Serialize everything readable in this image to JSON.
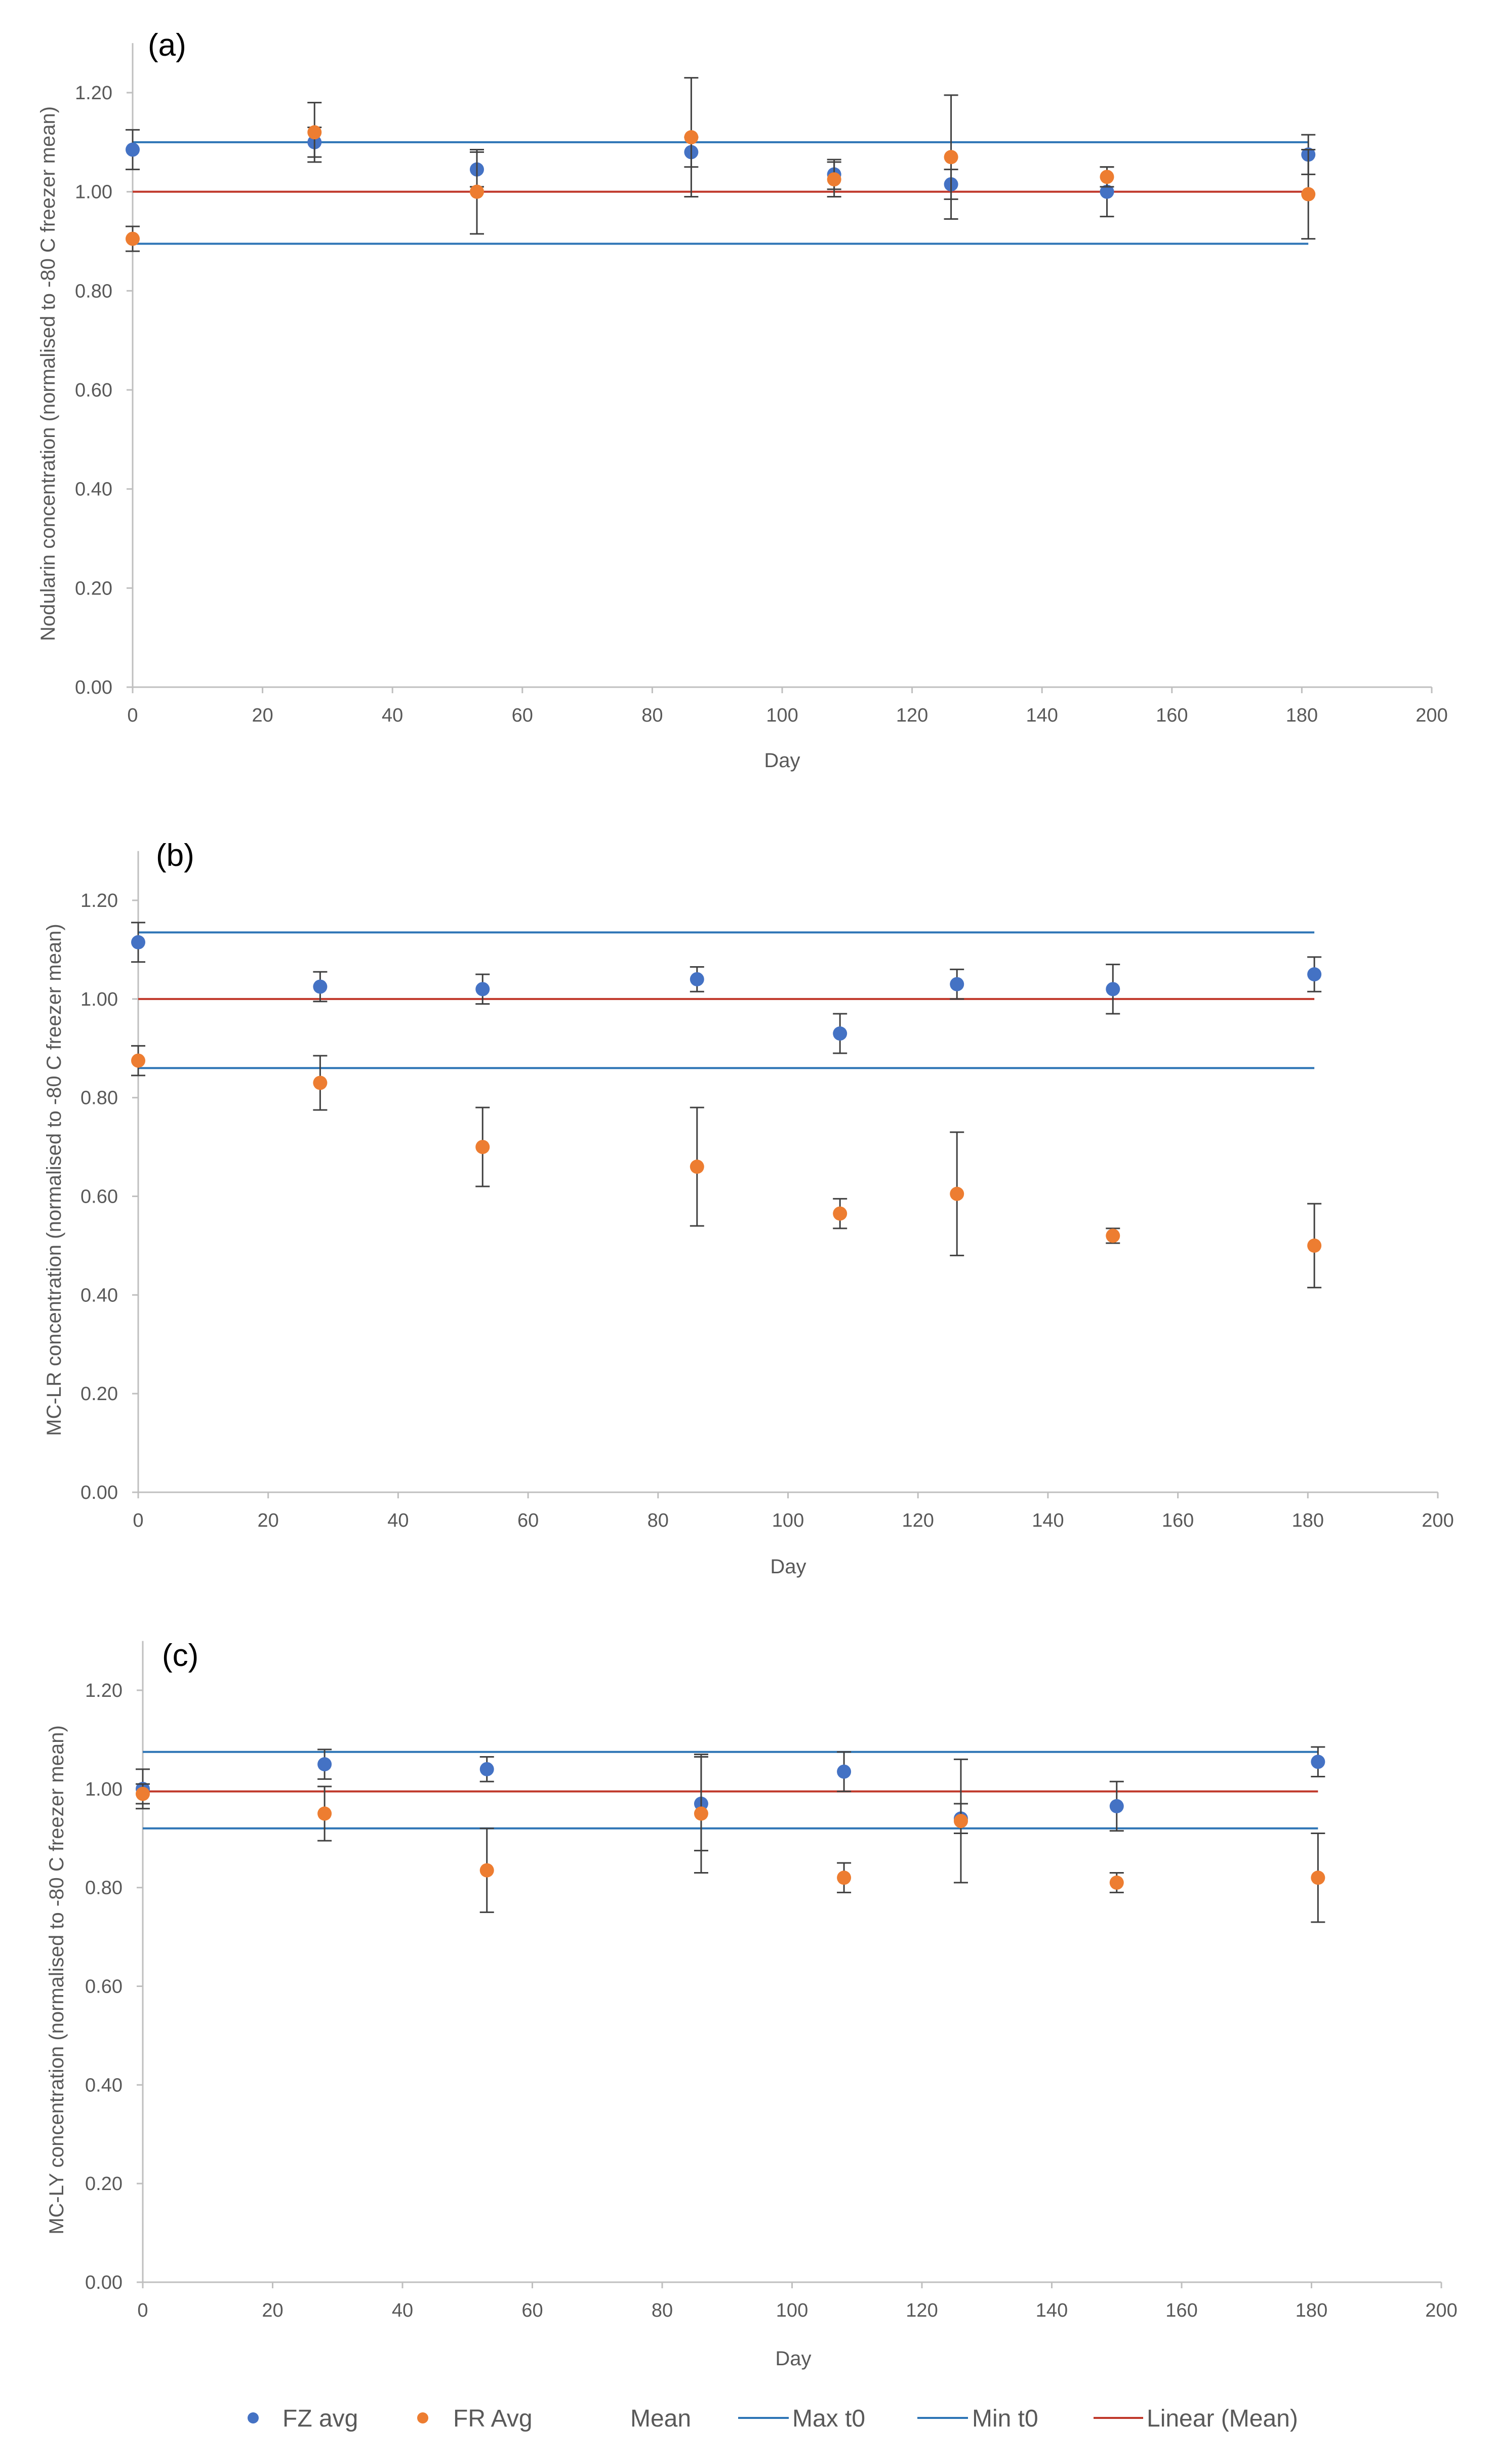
{
  "figure": {
    "background": "#ffffff"
  },
  "colors": {
    "fz": "#4472C4",
    "fr": "#ED7D31",
    "bound": "#2E75B6",
    "mean_line": "#C0392B",
    "axis": "#BFBFBF",
    "error_bar": "#404040"
  },
  "legend": {
    "items": [
      {
        "label": "FZ avg",
        "kind": "marker",
        "color": "#4472C4"
      },
      {
        "label": "FR Avg",
        "kind": "marker",
        "color": "#ED7D31"
      },
      {
        "label": "Mean",
        "kind": "none"
      },
      {
        "label": "Max t0",
        "kind": "line",
        "color": "#2E75B6"
      },
      {
        "label": "Min t0",
        "kind": "line",
        "color": "#2E75B6"
      },
      {
        "label": "Linear (Mean)",
        "kind": "line",
        "color": "#C0392B"
      }
    ]
  },
  "chart_data": [
    {
      "type": "scatter",
      "panel_label": "(a)",
      "xlabel": "Day",
      "ylabel": "Nodularin concentration (normalised to -80 C freezer mean)",
      "xlim": [
        0,
        200
      ],
      "ylim": [
        0,
        1.3
      ],
      "xticks": [
        "0",
        "20",
        "40",
        "60",
        "80",
        "100",
        "120",
        "140",
        "160",
        "180",
        "200"
      ],
      "yticks": [
        "0.00",
        "0.20",
        "0.40",
        "0.60",
        "0.80",
        "1.00",
        "1.20"
      ],
      "reference_lines": {
        "max_t0": 1.1,
        "min_t0": 0.895,
        "mean": 1.0,
        "x_range": [
          0,
          181
        ]
      },
      "series": [
        {
          "name": "FZ avg",
          "x": [
            0,
            28,
            53,
            86,
            108,
            126,
            150,
            181
          ],
          "y": [
            1.085,
            1.1,
            1.045,
            1.08,
            1.035,
            1.015,
            1.0,
            1.075
          ],
          "error": [
            0.04,
            0.03,
            0.035,
            0.03,
            0.03,
            0.03,
            0.05,
            0.04
          ]
        },
        {
          "name": "FR Avg",
          "x": [
            0,
            28,
            53,
            86,
            108,
            126,
            150,
            181
          ],
          "y": [
            0.905,
            1.12,
            1.0,
            1.11,
            1.025,
            1.07,
            1.03,
            0.995
          ],
          "error": [
            0.025,
            0.06,
            0.085,
            0.12,
            0.035,
            0.125,
            0.02,
            0.09
          ]
        }
      ]
    },
    {
      "type": "scatter",
      "panel_label": "(b)",
      "xlabel": "Day",
      "ylabel": "MC-LR concentration (normalised to -80 C freezer mean)",
      "xlim": [
        0,
        200
      ],
      "ylim": [
        0,
        1.3
      ],
      "xticks": [
        "0",
        "20",
        "40",
        "60",
        "80",
        "100",
        "120",
        "140",
        "160",
        "180",
        "200"
      ],
      "yticks": [
        "0.00",
        "0.20",
        "0.40",
        "0.60",
        "0.80",
        "1.00",
        "1.20"
      ],
      "reference_lines": {
        "max_t0": 1.135,
        "min_t0": 0.86,
        "mean": 1.0,
        "x_range": [
          0,
          181
        ]
      },
      "series": [
        {
          "name": "FZ avg",
          "x": [
            0,
            28,
            53,
            86,
            108,
            126,
            150,
            181
          ],
          "y": [
            1.115,
            1.025,
            1.02,
            1.04,
            0.93,
            1.03,
            1.02,
            1.05
          ],
          "error": [
            0.04,
            0.03,
            0.03,
            0.025,
            0.04,
            0.03,
            0.05,
            0.035
          ]
        },
        {
          "name": "FR Avg",
          "x": [
            0,
            28,
            53,
            86,
            108,
            126,
            150,
            181
          ],
          "y": [
            0.875,
            0.83,
            0.7,
            0.66,
            0.565,
            0.605,
            0.52,
            0.5
          ],
          "error": [
            0.03,
            0.055,
            0.08,
            0.12,
            0.03,
            0.125,
            0.015,
            0.085
          ]
        }
      ]
    },
    {
      "type": "scatter",
      "panel_label": "(c)",
      "xlabel": "Day",
      "ylabel": "MC-LY concentration (normalised to -80 C freezer mean)",
      "xlim": [
        0,
        200
      ],
      "ylim": [
        0,
        1.3
      ],
      "xticks": [
        "0",
        "20",
        "40",
        "60",
        "80",
        "100",
        "120",
        "140",
        "160",
        "180",
        "200"
      ],
      "yticks": [
        "0.00",
        "0.20",
        "0.40",
        "0.60",
        "0.80",
        "1.00",
        "1.20"
      ],
      "reference_lines": {
        "max_t0": 1.075,
        "min_t0": 0.92,
        "mean": 0.995,
        "x_range": [
          0,
          181
        ]
      },
      "series": [
        {
          "name": "FZ avg",
          "x": [
            0,
            28,
            53,
            86,
            108,
            126,
            150,
            181
          ],
          "y": [
            1.0,
            1.05,
            1.04,
            0.97,
            1.035,
            0.94,
            0.965,
            1.055
          ],
          "error": [
            0.04,
            0.03,
            0.025,
            0.095,
            0.04,
            0.03,
            0.05,
            0.03
          ]
        },
        {
          "name": "FR Avg",
          "x": [
            0,
            28,
            53,
            86,
            108,
            126,
            150,
            181
          ],
          "y": [
            0.99,
            0.95,
            0.835,
            0.95,
            0.82,
            0.935,
            0.81,
            0.82
          ],
          "error": [
            0.02,
            0.055,
            0.085,
            0.12,
            0.03,
            0.125,
            0.02,
            0.09
          ]
        }
      ]
    }
  ]
}
